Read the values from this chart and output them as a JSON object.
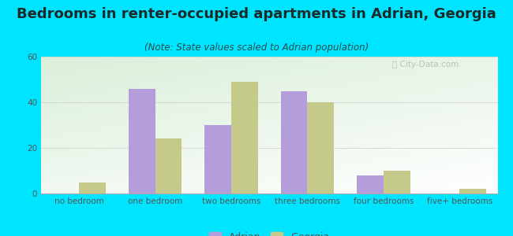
{
  "title": "Bedrooms in renter-occupied apartments in Adrian, Georgia",
  "subtitle": "(Note: State values scaled to Adrian population)",
  "categories": [
    "no bedroom",
    "one bedroom",
    "two bedrooms",
    "three bedrooms",
    "four bedrooms",
    "five+ bedrooms"
  ],
  "adrian_values": [
    0,
    46,
    30,
    45,
    8,
    0
  ],
  "georgia_values": [
    5,
    24,
    49,
    40,
    10,
    2
  ],
  "adrian_color": "#b39ddb",
  "georgia_color": "#c5c98a",
  "background_outer": "#00e5ff",
  "ylim": [
    0,
    60
  ],
  "yticks": [
    0,
    20,
    40,
    60
  ],
  "bar_width": 0.35,
  "title_fontsize": 13,
  "subtitle_fontsize": 8.5,
  "tick_fontsize": 7.5,
  "legend_fontsize": 9,
  "title_color": "#1a2a2a",
  "subtitle_color": "#2a4a4a",
  "tick_color": "#555555"
}
